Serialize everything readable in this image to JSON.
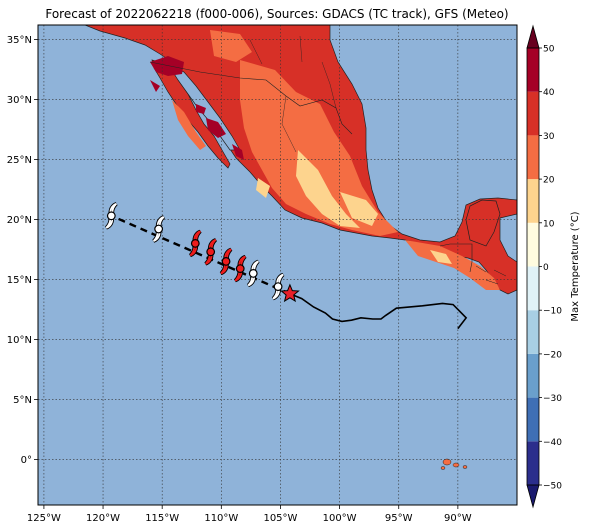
{
  "title": "Forecast of 2022062218 (f000-006), Sources: GDACS (TC track), GFS (Meteo)",
  "map": {
    "lon_min": -125.5,
    "lon_max": -85,
    "lat_min": -3.8,
    "lat_max": 36.2,
    "ocean_color": "#8fb3d9",
    "grid": true,
    "x_ticks": [
      {
        "value": -125,
        "label": "125°W"
      },
      {
        "value": -120,
        "label": "120°W"
      },
      {
        "value": -115,
        "label": "115°W"
      },
      {
        "value": -110,
        "label": "110°W"
      },
      {
        "value": -105,
        "label": "105°W"
      },
      {
        "value": -100,
        "label": "100°W"
      },
      {
        "value": -95,
        "label": "95°W"
      },
      {
        "value": -90,
        "label": "90°W"
      }
    ],
    "y_ticks": [
      {
        "value": 35,
        "label": "35°N"
      },
      {
        "value": 30,
        "label": "30°N"
      },
      {
        "value": 25,
        "label": "25°N"
      },
      {
        "value": 20,
        "label": "20°N"
      },
      {
        "value": 15,
        "label": "15°N"
      },
      {
        "value": 10,
        "label": "10°N"
      },
      {
        "value": 5,
        "label": "5°N"
      },
      {
        "value": 0,
        "label": "0°"
      }
    ]
  },
  "colorbar": {
    "label": "Max Temperature (°C)",
    "min": -50,
    "max": 50,
    "ticks": [
      {
        "value": 50,
        "label": "50"
      },
      {
        "value": 40,
        "label": "40"
      },
      {
        "value": 30,
        "label": "30"
      },
      {
        "value": 20,
        "label": "20"
      },
      {
        "value": 10,
        "label": "10"
      },
      {
        "value": 0,
        "label": "0"
      },
      {
        "value": -10,
        "label": "−10"
      },
      {
        "value": -20,
        "label": "−20"
      },
      {
        "value": -30,
        "label": "−30"
      },
      {
        "value": -40,
        "label": "−40"
      },
      {
        "value": -50,
        "label": "−50"
      }
    ],
    "bands": [
      {
        "from": -50,
        "to": -40,
        "color": "#2b2e8c"
      },
      {
        "from": -40,
        "to": -30,
        "color": "#3f6fb5"
      },
      {
        "from": -30,
        "to": -20,
        "color": "#6a9fcc"
      },
      {
        "from": -20,
        "to": -10,
        "color": "#a8cfe4"
      },
      {
        "from": -10,
        "to": 0,
        "color": "#e0f2f7"
      },
      {
        "from": 0,
        "to": 10,
        "color": "#fffce0"
      },
      {
        "from": 10,
        "to": 20,
        "color": "#fdd48e"
      },
      {
        "from": 20,
        "to": 30,
        "color": "#f46d43"
      },
      {
        "from": 30,
        "to": 40,
        "color": "#d73027"
      },
      {
        "from": 40,
        "to": 50,
        "color": "#a50026"
      }
    ],
    "over_color": "#67001f",
    "under_color": "#1a1a6e"
  },
  "storm": {
    "current_position": {
      "lon": -104.2,
      "lat": 13.8
    },
    "history_track": [
      [
        -104.2,
        13.8
      ],
      [
        -103.2,
        13.4
      ],
      [
        -102.2,
        12.7
      ],
      [
        -101.2,
        12.2
      ],
      [
        -100.6,
        11.7
      ],
      [
        -99.8,
        11.5
      ],
      [
        -99.0,
        11.6
      ],
      [
        -98.2,
        11.8
      ],
      [
        -97.2,
        11.7
      ],
      [
        -96.5,
        11.7
      ],
      [
        -96.1,
        12.0
      ],
      [
        -95.2,
        12.6
      ],
      [
        -93.0,
        12.8
      ],
      [
        -91.3,
        13.0
      ],
      [
        -90.4,
        12.9
      ],
      [
        -89.8,
        12.3
      ],
      [
        -89.3,
        11.8
      ],
      [
        -90.0,
        10.9
      ]
    ],
    "forecast_track": [
      [
        -104.2,
        13.8
      ],
      [
        -119.3,
        20.3
      ]
    ],
    "symbols": [
      {
        "lon": -105.2,
        "lat": 14.4,
        "color": "#ffffff"
      },
      {
        "lon": -107.3,
        "lat": 15.5,
        "color": "#ffffff"
      },
      {
        "lon": -108.4,
        "lat": 15.9,
        "color": "#ee1c1c"
      },
      {
        "lon": -109.6,
        "lat": 16.5,
        "color": "#ee1c1c"
      },
      {
        "lon": -110.9,
        "lat": 17.3,
        "color": "#ee1c1c"
      },
      {
        "lon": -112.2,
        "lat": 18.0,
        "color": "#ee1c1c"
      },
      {
        "lon": -115.3,
        "lat": 19.2,
        "color": "#ffffff"
      },
      {
        "lon": -119.3,
        "lat": 20.3,
        "color": "#ffffff"
      }
    ]
  }
}
